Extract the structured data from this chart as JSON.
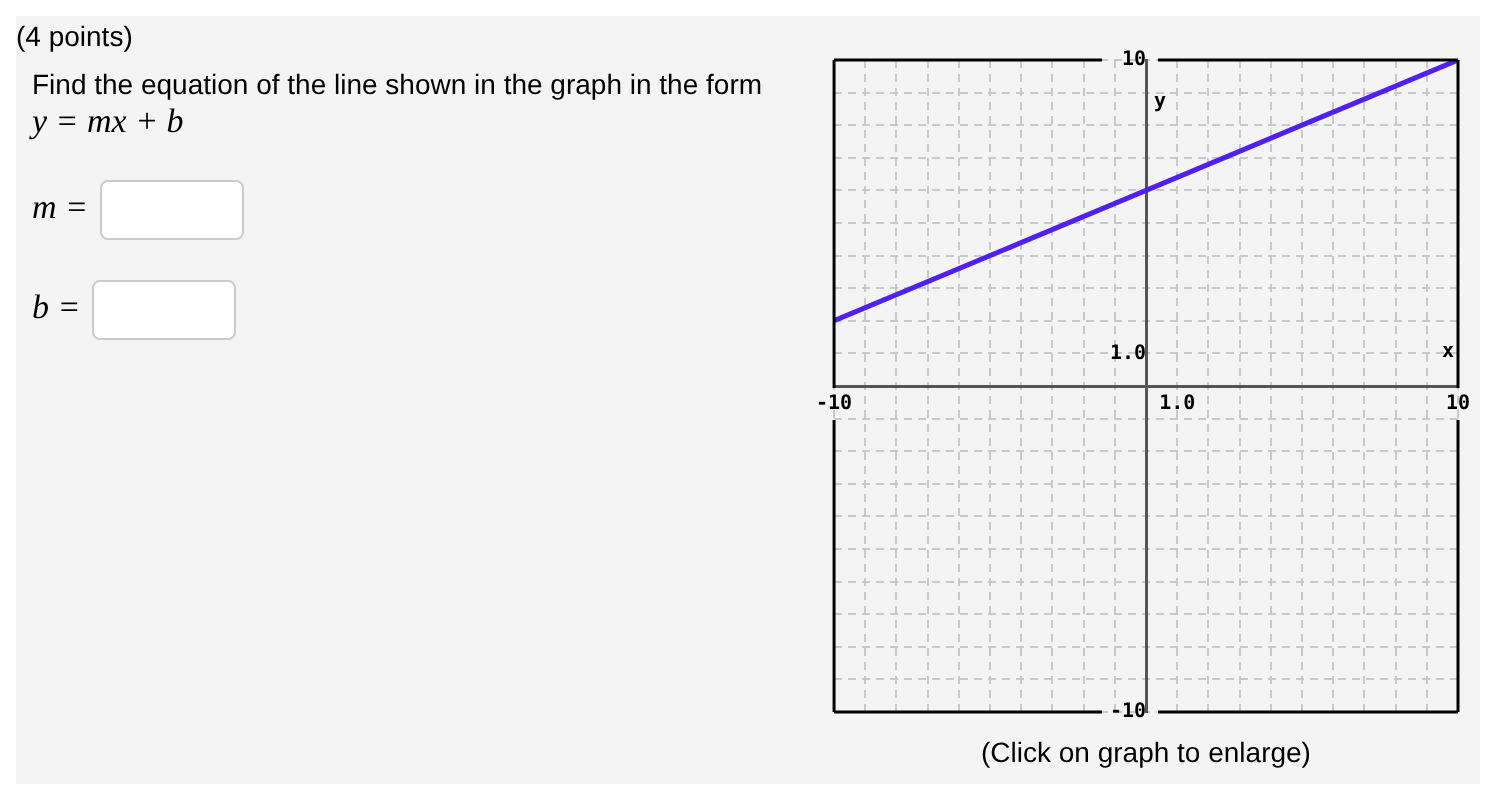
{
  "chart_data": {
    "type": "line",
    "title": "(4 points)",
    "subtitle": "Find the equation of the line shown in the graph in the form",
    "xlabel": "x",
    "ylabel": "y",
    "series": [
      {
        "color": "#5020f0",
        "x": [
          -10,
          10
        ],
        "values": [
          2,
          10
        ]
      }
    ],
    "xlim": [
      -10,
      10
    ],
    "ylim": [
      -10,
      10
    ],
    "xticks": [
      -10,
      {
        "value": -9,
        "label": null
      },
      {
        "value": -8,
        "label": null
      },
      {
        "value": -7,
        "label": null
      },
      {
        "value": -6,
        "label": null
      },
      {
        "value": -5,
        "label": null
      },
      {
        "value": -4,
        "label": null
      },
      {
        "value": -3,
        "label": null
      },
      {
        "value": -2,
        "label": null
      },
      {
        "value": -1,
        "label": null
      },
      {
        "value": 0,
        "label": null
      },
      {
        "value": 1,
        "label": "1.0"
      },
      {
        "value": 2,
        "label": null
      },
      {
        "value": 3,
        "label": null
      },
      {
        "value": 4,
        "label": null
      },
      {
        "value": 5,
        "label": null
      },
      {
        "value": 6,
        "label": null
      },
      {
        "value": 7,
        "label": null
      },
      {
        "value": 8,
        "label": null
      },
      {
        "value": 9,
        "label": null
      },
      10
    ],
    "yticks": [
      -10,
      {
        "value": -9,
        "label": null
      },
      {
        "value": -8,
        "label": null
      },
      {
        "value": -7,
        "label": null
      },
      {
        "value": -6,
        "label": null
      },
      {
        "value": -5,
        "label": null
      },
      {
        "value": -4,
        "label": null
      },
      {
        "value": -3,
        "label": null
      },
      {
        "value": -2,
        "label": null
      },
      {
        "value": -1,
        "label": null
      },
      {
        "value": 0,
        "label": null
      },
      {
        "value": 1,
        "label": "1.0"
      },
      {
        "value": 2,
        "label": null
      },
      {
        "value": 3,
        "label": null
      },
      {
        "value": 4,
        "label": null
      },
      {
        "value": 5,
        "label": null
      },
      {
        "value": 6,
        "label": null
      },
      {
        "value": 7,
        "label": null
      },
      {
        "value": 8,
        "label": null
      },
      {
        "value": 9,
        "label": null
      },
      10
    ],
    "grid": true,
    "annotations": [
      "y = mx + b",
      "m =",
      "b =",
      "(Click on graph to enlarge)"
    ]
  }
}
